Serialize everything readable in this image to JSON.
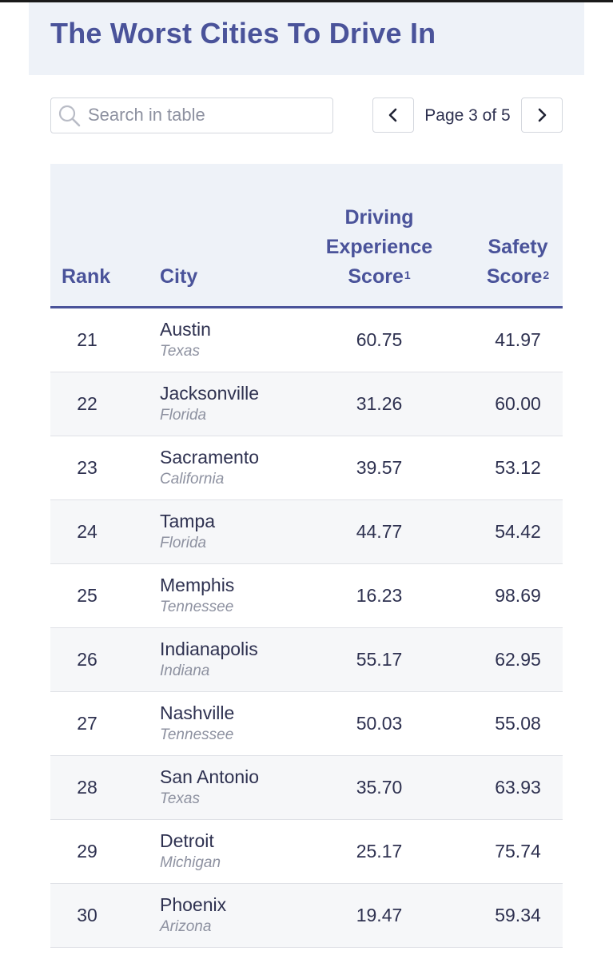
{
  "header": {
    "title": "The Worst Cities To Drive In"
  },
  "search": {
    "placeholder": "Search in table",
    "value": ""
  },
  "pagination": {
    "label": "Page 3 of 5",
    "current_page": 3,
    "total_pages": 5
  },
  "table": {
    "columns": {
      "rank": "Rank",
      "city": "City",
      "driving": {
        "line1": "Driving",
        "line2": "Experience",
        "line3": "Score",
        "sup": "1"
      },
      "safety": {
        "line1": "Safety",
        "line2": "Score",
        "sup": "2"
      }
    },
    "rows": [
      {
        "rank": "21",
        "city": "Austin",
        "state": "Texas",
        "driving": "60.75",
        "safety": "41.97"
      },
      {
        "rank": "22",
        "city": "Jacksonville",
        "state": "Florida",
        "driving": "31.26",
        "safety": "60.00"
      },
      {
        "rank": "23",
        "city": "Sacramento",
        "state": "California",
        "driving": "39.57",
        "safety": "53.12"
      },
      {
        "rank": "24",
        "city": "Tampa",
        "state": "Florida",
        "driving": "44.77",
        "safety": "54.42"
      },
      {
        "rank": "25",
        "city": "Memphis",
        "state": "Tennessee",
        "driving": "16.23",
        "safety": "98.69"
      },
      {
        "rank": "26",
        "city": "Indianapolis",
        "state": "Indiana",
        "driving": "55.17",
        "safety": "62.95"
      },
      {
        "rank": "27",
        "city": "Nashville",
        "state": "Tennessee",
        "driving": "50.03",
        "safety": "55.08"
      },
      {
        "rank": "28",
        "city": "San Antonio",
        "state": "Texas",
        "driving": "35.70",
        "safety": "63.93"
      },
      {
        "rank": "29",
        "city": "Detroit",
        "state": "Michigan",
        "driving": "25.17",
        "safety": "75.74"
      },
      {
        "rank": "30",
        "city": "Phoenix",
        "state": "Arizona",
        "driving": "19.47",
        "safety": "59.34"
      }
    ]
  },
  "colors": {
    "accent": "#4a539a",
    "header_bg": "#eef2f8",
    "text": "#2e3150",
    "muted": "#8d91a0"
  },
  "icons": {
    "search": "search-icon",
    "prev": "chevron-left-icon",
    "next": "chevron-right-icon"
  }
}
